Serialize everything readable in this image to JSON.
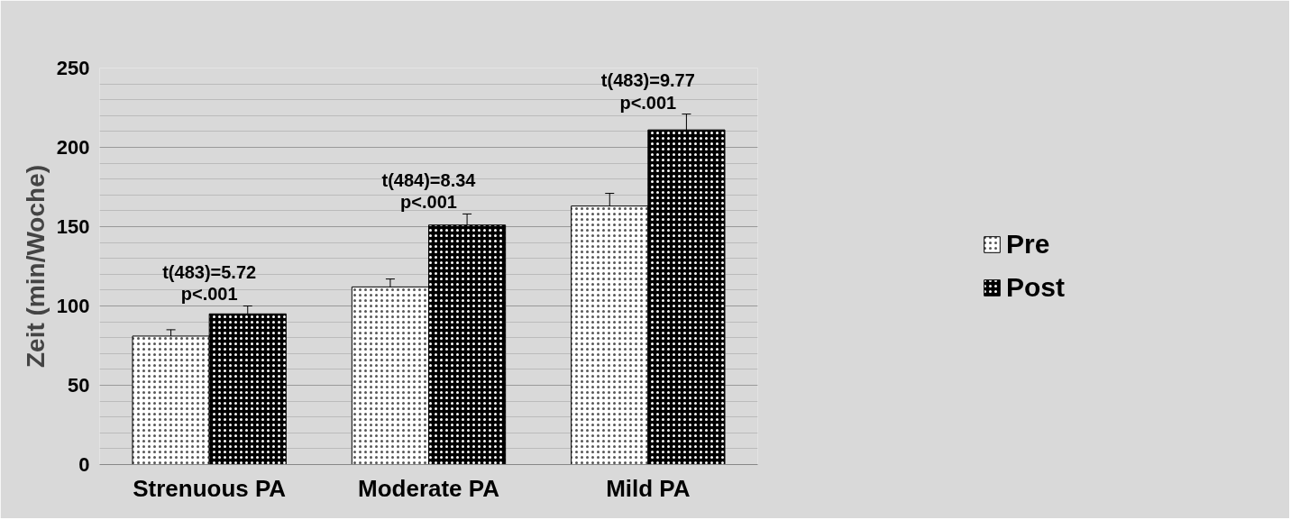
{
  "chart_data": {
    "type": "bar",
    "ylabel": "Zeit (min/Woche)",
    "categories": [
      "Strenuous PA",
      "Moderate PA",
      "Mild PA"
    ],
    "series": [
      {
        "name": "Pre",
        "color": "#ffffff",
        "values": [
          81,
          112,
          163
        ],
        "errors": [
          4,
          5,
          8
        ]
      },
      {
        "name": "Post",
        "color": "#000000",
        "values": [
          95,
          151,
          211
        ],
        "errors": [
          5,
          7,
          10
        ]
      }
    ],
    "ylim": [
      0,
      250
    ],
    "yticks": [
      0,
      50,
      100,
      150,
      200,
      250
    ],
    "grid": "y",
    "legend": "right",
    "annotations": [
      "t(483)=5.72\np<.001",
      "t(484)=8.34\np<.001",
      "t(483)=9.77\np<.001"
    ]
  }
}
